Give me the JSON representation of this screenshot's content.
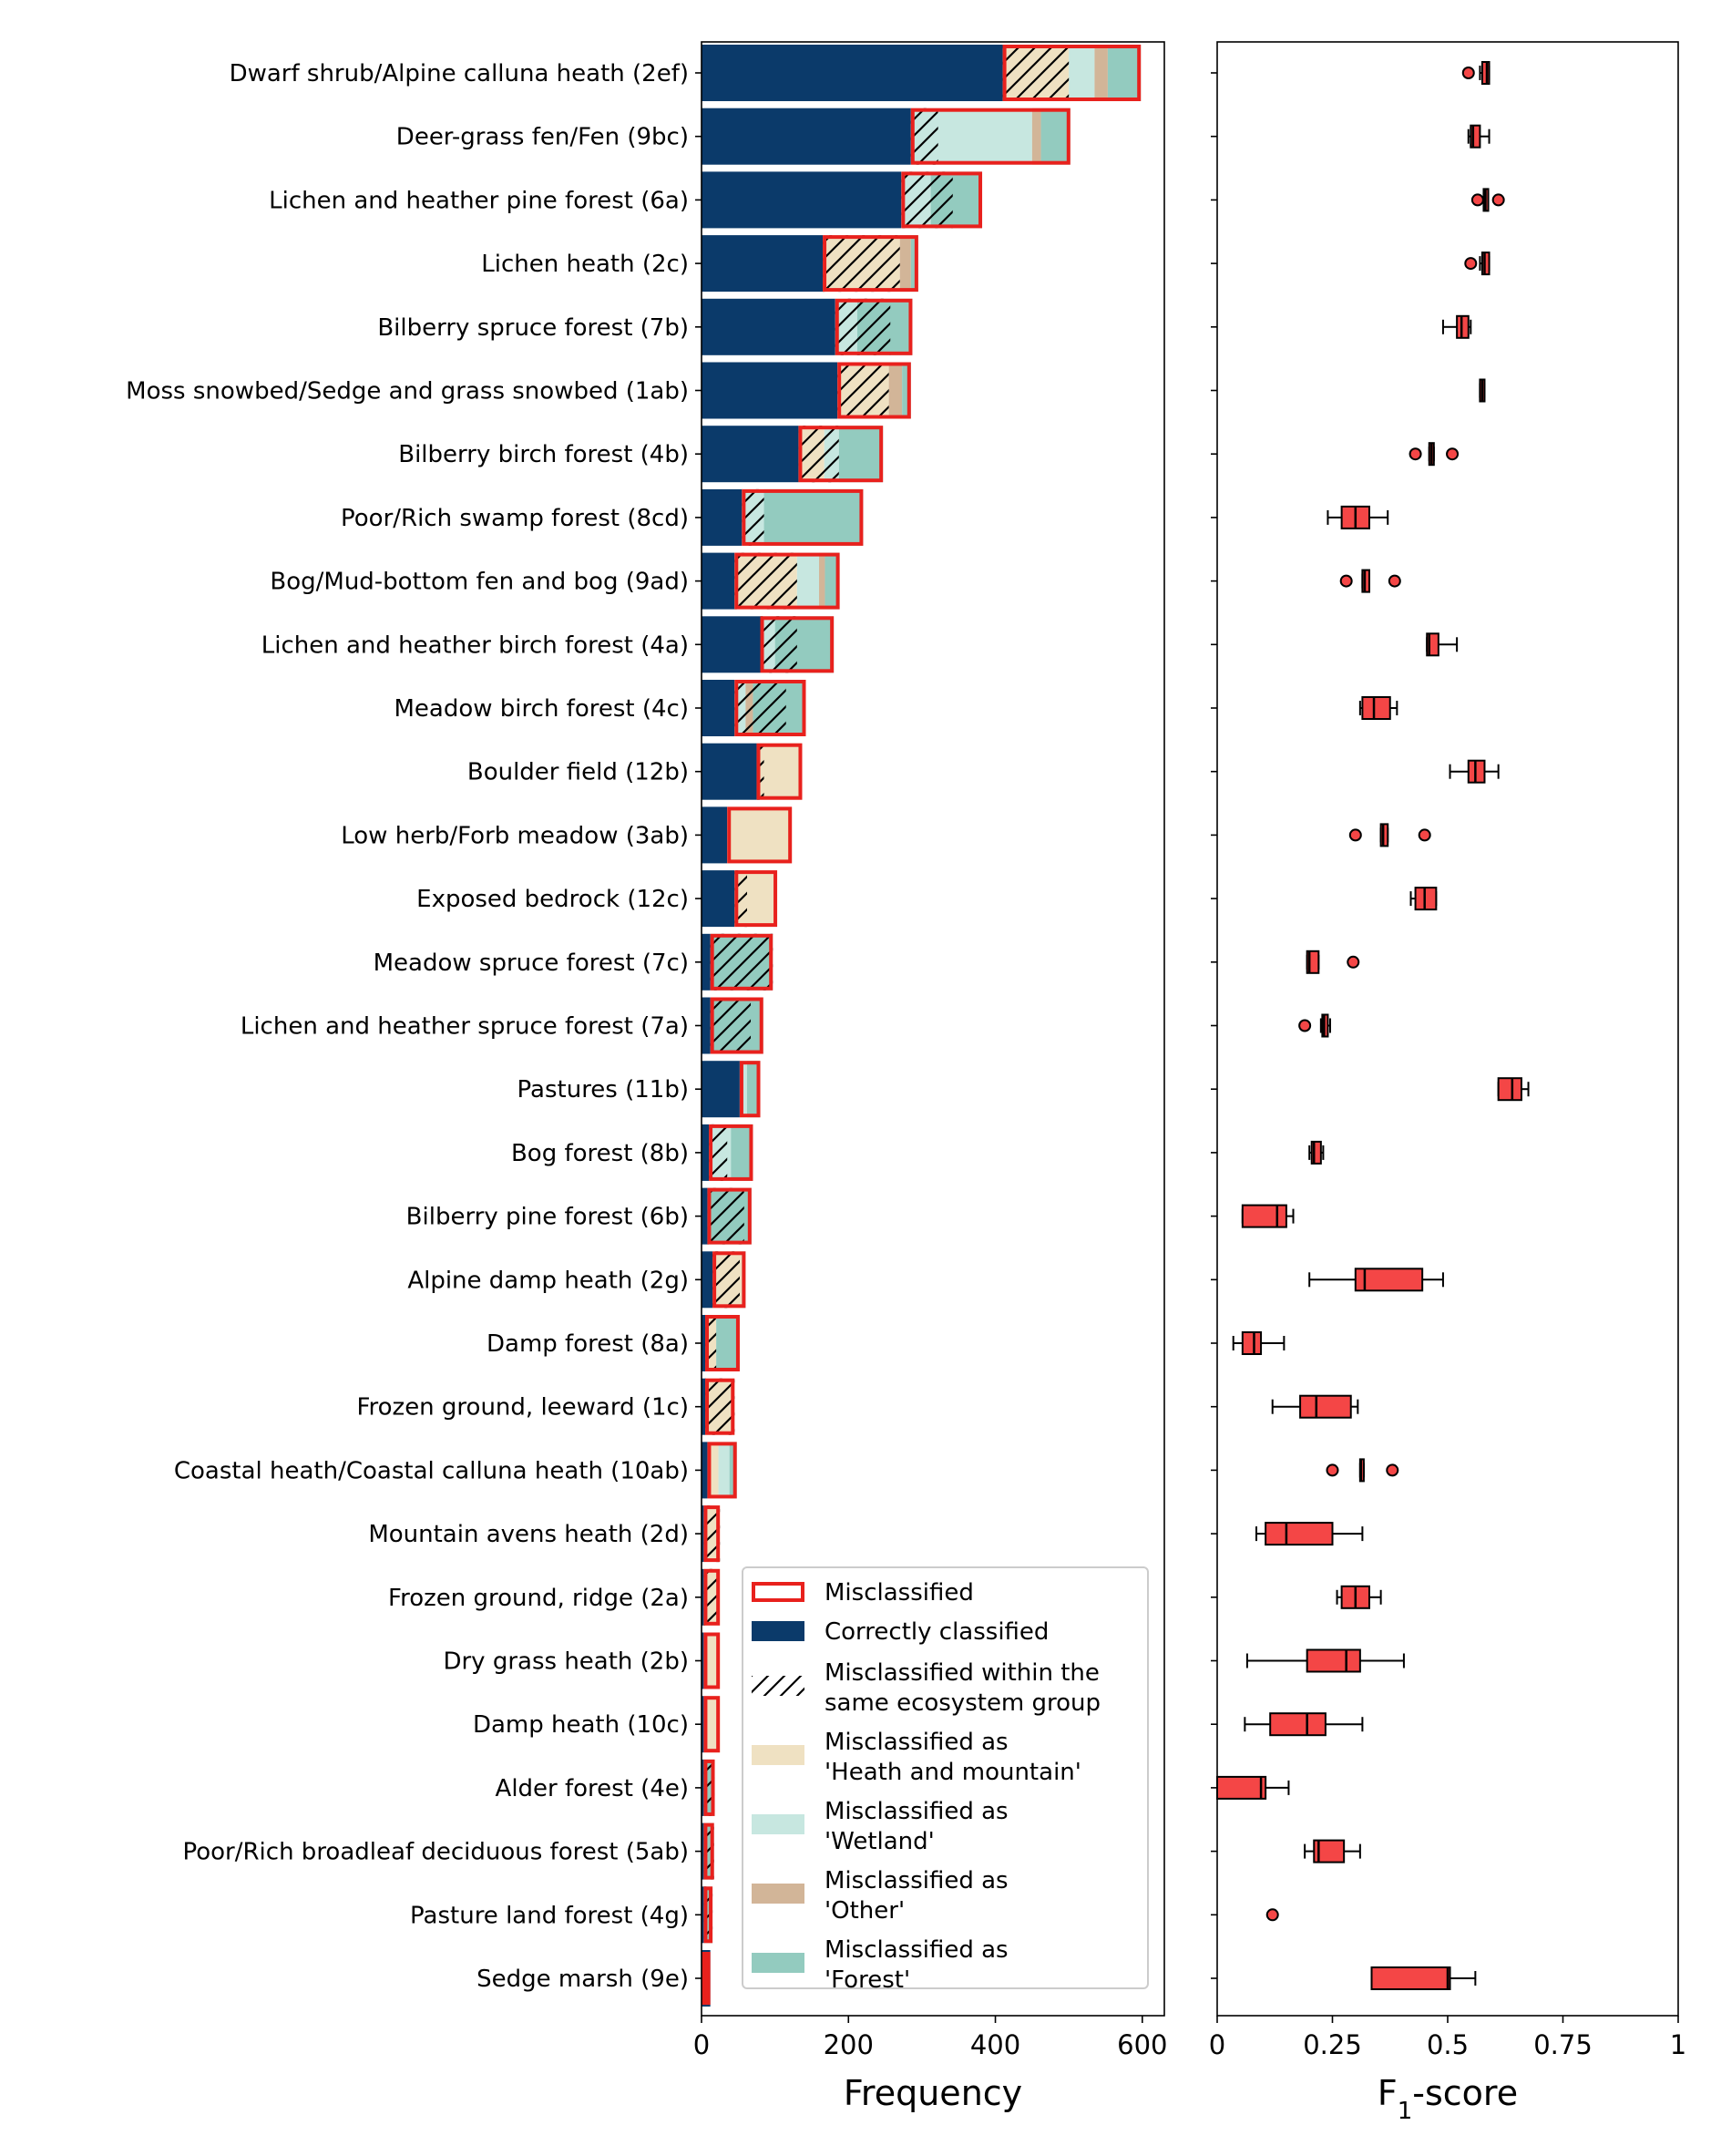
{
  "colors": {
    "misclassified_edge": "#e8211d",
    "correct": "#0b3a6a",
    "heath_and_mountain": "#efe1c2",
    "wetland": "#c7e7e0",
    "other": "#d2b598",
    "forest": "#93cbbf",
    "f1_box": "#f44646"
  },
  "chart_data": [
    {
      "type": "bar",
      "orientation": "horizontal",
      "stacked": true,
      "xlabel": "Frequency",
      "xlim": [
        0,
        630
      ],
      "xticks": [
        "0",
        "200",
        "400",
        "600"
      ],
      "categories": [
        "Dwarf shrub/Alpine calluna heath (2ef)",
        "Deer-grass fen/Fen (9bc)",
        "Lichen and heather pine forest (6a)",
        "Lichen heath (2c)",
        "Bilberry spruce forest (7b)",
        "Moss snowbed/Sedge and grass snowbed (1ab)",
        "Bilberry birch forest (4b)",
        "Poor/Rich swamp forest (8cd)",
        "Bog/Mud-bottom fen and bog (9ad)",
        "Lichen and heather birch forest (4a)",
        "Meadow birch forest (4c)",
        "Boulder field (12b)",
        "Low herb/Forb meadow (3ab)",
        "Exposed bedrock (12c)",
        "Meadow spruce forest (7c)",
        "Lichen and heather spruce forest (7a)",
        "Pastures (11b)",
        "Bog forest (8b)",
        "Bilberry pine forest (6b)",
        "Alpine damp heath (2g)",
        "Damp forest (8a)",
        "Frozen ground, leeward (1c)",
        "Coastal heath/Coastal calluna heath (10ab)",
        "Mountain avens heath (2d)",
        "Frozen ground, ridge (2a)",
        "Dry grass heath (2b)",
        "Damp heath (10c)",
        "Alder forest (4e)",
        "Poor/Rich broadleaf deciduous forest (5ab)",
        "Pasture land forest (4g)",
        "Sedge marsh (9e)"
      ],
      "segment_order": [
        "Correctly classified",
        "Heath and mountain",
        "Wetland",
        "Other",
        "Forest"
      ],
      "series": [
        {
          "name": "Correctly classified",
          "values": [
            410,
            285,
            272,
            165,
            182,
            185,
            132,
            55,
            45,
            80,
            45,
            75,
            35,
            45,
            12,
            12,
            52,
            10,
            8,
            15,
            5,
            5,
            8,
            3,
            3,
            3,
            3,
            3,
            3,
            3,
            12
          ]
        },
        {
          "name": "Heath and mountain",
          "values": [
            90,
            0,
            0,
            105,
            0,
            70,
            35,
            0,
            85,
            0,
            0,
            62,
            88,
            58,
            0,
            0,
            0,
            0,
            0,
            40,
            15,
            40,
            15,
            22,
            22,
            22,
            22,
            0,
            0,
            0,
            0
          ]
        },
        {
          "name": "Wetland",
          "values": [
            35,
            165,
            40,
            0,
            30,
            0,
            20,
            30,
            30,
            20,
            15,
            0,
            0,
            0,
            0,
            0,
            10,
            30,
            0,
            0,
            0,
            0,
            15,
            0,
            0,
            0,
            0,
            0,
            0,
            0,
            0
          ]
        },
        {
          "name": "Other",
          "values": [
            18,
            12,
            0,
            15,
            0,
            18,
            0,
            0,
            8,
            0,
            10,
            0,
            0,
            0,
            0,
            0,
            0,
            0,
            0,
            0,
            0,
            0,
            0,
            0,
            0,
            0,
            0,
            0,
            0,
            0,
            0
          ]
        },
        {
          "name": "Forest",
          "values": [
            45,
            40,
            70,
            10,
            75,
            12,
            60,
            135,
            20,
            80,
            72,
            0,
            0,
            0,
            85,
            72,
            18,
            30,
            60,
            5,
            32,
            0,
            10,
            0,
            0,
            0,
            0,
            15,
            14,
            12,
            0
          ]
        }
      ],
      "misclassified_start": [
        410,
        285,
        272,
        165,
        182,
        185,
        132,
        55,
        45,
        80,
        45,
        75,
        35,
        45,
        12,
        12,
        52,
        10,
        8,
        15,
        5,
        5,
        8,
        3,
        3,
        3,
        3,
        3,
        3,
        3,
        12
      ],
      "within_group_hatch": [
        [
          410,
          500
        ],
        [
          285,
          322
        ],
        [
          272,
          342
        ],
        [
          165,
          270
        ],
        [
          182,
          257
        ],
        [
          185,
          255
        ],
        [
          132,
          187
        ],
        [
          55,
          85
        ],
        [
          45,
          130
        ],
        [
          80,
          130
        ],
        [
          45,
          115
        ],
        [
          75,
          85
        ],
        null,
        [
          45,
          62
        ],
        [
          12,
          97
        ],
        [
          12,
          67
        ],
        null,
        [
          10,
          35
        ],
        [
          8,
          58
        ],
        [
          15,
          52
        ],
        [
          5,
          20
        ],
        [
          5,
          45
        ],
        null,
        [
          3,
          25
        ],
        [
          3,
          22
        ],
        null,
        null,
        [
          3,
          18
        ],
        [
          3,
          17
        ],
        [
          3,
          15
        ],
        null
      ],
      "legend": [
        "Misclassified",
        "Correctly classified",
        "Misclassified within the same ecosystem group",
        "Misclassified as 'Heath and mountain'",
        "Misclassified as 'Wetland'",
        "Misclassified as 'Other'",
        "Misclassified as 'Forest'"
      ],
      "legend_position": "lower right"
    },
    {
      "type": "box",
      "orientation": "horizontal",
      "xlabel": "F1-score",
      "xlim": [
        0,
        1
      ],
      "xticks": [
        "0",
        "0.25",
        "0.5",
        "0.75",
        "1"
      ],
      "boxes": [
        {
          "q1": 0.575,
          "median": 0.585,
          "q3": 0.59,
          "wlo": 0.57,
          "whi": 0.59,
          "fliers": [
            0.545
          ]
        },
        {
          "q1": 0.55,
          "median": 0.555,
          "q3": 0.57,
          "wlo": 0.545,
          "whi": 0.59,
          "fliers": []
        },
        {
          "q1": 0.578,
          "median": 0.582,
          "q3": 0.588,
          "wlo": 0.578,
          "whi": 0.588,
          "fliers": [
            0.565,
            0.61
          ]
        },
        {
          "q1": 0.575,
          "median": 0.58,
          "q3": 0.59,
          "wlo": 0.57,
          "whi": 0.59,
          "fliers": [
            0.55
          ]
        },
        {
          "q1": 0.52,
          "median": 0.53,
          "q3": 0.545,
          "wlo": 0.49,
          "whi": 0.55,
          "fliers": []
        },
        {
          "q1": 0.57,
          "median": 0.575,
          "q3": 0.58,
          "wlo": 0.57,
          "whi": 0.58,
          "fliers": []
        },
        {
          "q1": 0.46,
          "median": 0.465,
          "q3": 0.47,
          "wlo": 0.46,
          "whi": 0.47,
          "fliers": [
            0.43,
            0.51
          ]
        },
        {
          "q1": 0.27,
          "median": 0.3,
          "q3": 0.33,
          "wlo": 0.24,
          "whi": 0.37,
          "fliers": []
        },
        {
          "q1": 0.315,
          "median": 0.32,
          "q3": 0.33,
          "wlo": 0.315,
          "whi": 0.33,
          "fliers": [
            0.28,
            0.385
          ]
        },
        {
          "q1": 0.455,
          "median": 0.46,
          "q3": 0.48,
          "wlo": 0.455,
          "whi": 0.52,
          "fliers": []
        },
        {
          "q1": 0.315,
          "median": 0.34,
          "q3": 0.375,
          "wlo": 0.31,
          "whi": 0.39,
          "fliers": []
        },
        {
          "q1": 0.545,
          "median": 0.56,
          "q3": 0.58,
          "wlo": 0.505,
          "whi": 0.61,
          "fliers": []
        },
        {
          "q1": 0.355,
          "median": 0.36,
          "q3": 0.37,
          "wlo": 0.355,
          "whi": 0.37,
          "fliers": [
            0.3,
            0.45
          ]
        },
        {
          "q1": 0.43,
          "median": 0.45,
          "q3": 0.475,
          "wlo": 0.42,
          "whi": 0.475,
          "fliers": []
        },
        {
          "q1": 0.195,
          "median": 0.2,
          "q3": 0.22,
          "wlo": 0.195,
          "whi": 0.22,
          "fliers": [
            0.295
          ]
        },
        {
          "q1": 0.228,
          "median": 0.232,
          "q3": 0.24,
          "wlo": 0.225,
          "whi": 0.245,
          "fliers": [
            0.19
          ]
        },
        {
          "q1": 0.61,
          "median": 0.64,
          "q3": 0.66,
          "wlo": 0.61,
          "whi": 0.675,
          "fliers": []
        },
        {
          "q1": 0.205,
          "median": 0.21,
          "q3": 0.225,
          "wlo": 0.2,
          "whi": 0.23,
          "fliers": []
        },
        {
          "q1": 0.055,
          "median": 0.13,
          "q3": 0.15,
          "wlo": 0.055,
          "whi": 0.165,
          "fliers": []
        },
        {
          "q1": 0.3,
          "median": 0.32,
          "q3": 0.445,
          "wlo": 0.2,
          "whi": 0.49,
          "fliers": []
        },
        {
          "q1": 0.055,
          "median": 0.08,
          "q3": 0.095,
          "wlo": 0.035,
          "whi": 0.145,
          "fliers": []
        },
        {
          "q1": 0.18,
          "median": 0.215,
          "q3": 0.29,
          "wlo": 0.12,
          "whi": 0.305,
          "fliers": []
        },
        {
          "q1": 0.31,
          "median": 0.312,
          "q3": 0.318,
          "wlo": 0.31,
          "whi": 0.318,
          "fliers": [
            0.25,
            0.38
          ]
        },
        {
          "q1": 0.105,
          "median": 0.15,
          "q3": 0.25,
          "wlo": 0.085,
          "whi": 0.315,
          "fliers": []
        },
        {
          "q1": 0.27,
          "median": 0.3,
          "q3": 0.33,
          "wlo": 0.26,
          "whi": 0.355,
          "fliers": []
        },
        {
          "q1": 0.195,
          "median": 0.28,
          "q3": 0.31,
          "wlo": 0.065,
          "whi": 0.405,
          "fliers": []
        },
        {
          "q1": 0.115,
          "median": 0.195,
          "q3": 0.235,
          "wlo": 0.06,
          "whi": 0.315,
          "fliers": []
        },
        {
          "q1": 0.0,
          "median": 0.095,
          "q3": 0.105,
          "wlo": 0.0,
          "whi": 0.155,
          "fliers": []
        },
        {
          "q1": 0.21,
          "median": 0.22,
          "q3": 0.275,
          "wlo": 0.19,
          "whi": 0.31,
          "fliers": []
        },
        null,
        {
          "q1": 0.335,
          "median": 0.5,
          "q3": 0.505,
          "wlo": 0.335,
          "whi": 0.56,
          "fliers": []
        }
      ],
      "fliers_only": [
        null,
        null,
        null,
        null,
        null,
        null,
        null,
        null,
        null,
        null,
        null,
        null,
        null,
        null,
        null,
        null,
        null,
        null,
        null,
        null,
        null,
        null,
        null,
        null,
        null,
        null,
        null,
        null,
        null,
        [
          0.12
        ],
        null
      ]
    }
  ]
}
